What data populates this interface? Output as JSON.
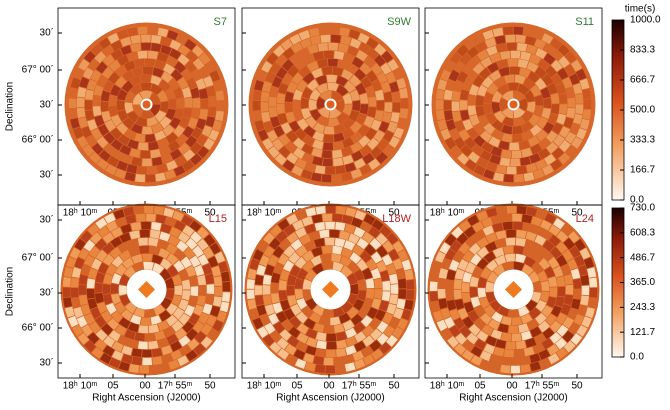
{
  "chart_data": {
    "type": "heatmap",
    "x_label": "Right Ascension (J2000)",
    "y_label": "Declination",
    "colorbar_label": "time(s)",
    "xticks": [
      "18ʰ 10ᵐ",
      "05",
      "00",
      "17ʰ 55ᵐ",
      "50"
    ],
    "yticks": [
      "30´",
      "67° 00´",
      "30´",
      "66° 00´",
      "30´"
    ],
    "rows": [
      {
        "panels": [
          "S7",
          "S9W",
          "S11"
        ],
        "label_color": "#2e7d32",
        "zlim": [
          0,
          1000
        ],
        "zticks": [
          {
            "value": 1000,
            "label": "1000.0"
          },
          833.3,
          666.7,
          {
            "value": 500,
            "label": "500.0"
          },
          333.3,
          166.7,
          {
            "value": 0,
            "label": "0.0"
          }
        ]
      },
      {
        "panels": [
          "L15",
          "L18W",
          "L24"
        ],
        "label_color": "#b22222",
        "zlim": [
          0,
          730
        ],
        "zticks": [
          {
            "value": 730,
            "label": "730.0"
          },
          608.3,
          486.7,
          {
            "value": 365,
            "label": "365.0"
          },
          243.3,
          121.7,
          {
            "value": 0,
            "label": "0.0"
          }
        ]
      }
    ]
  }
}
